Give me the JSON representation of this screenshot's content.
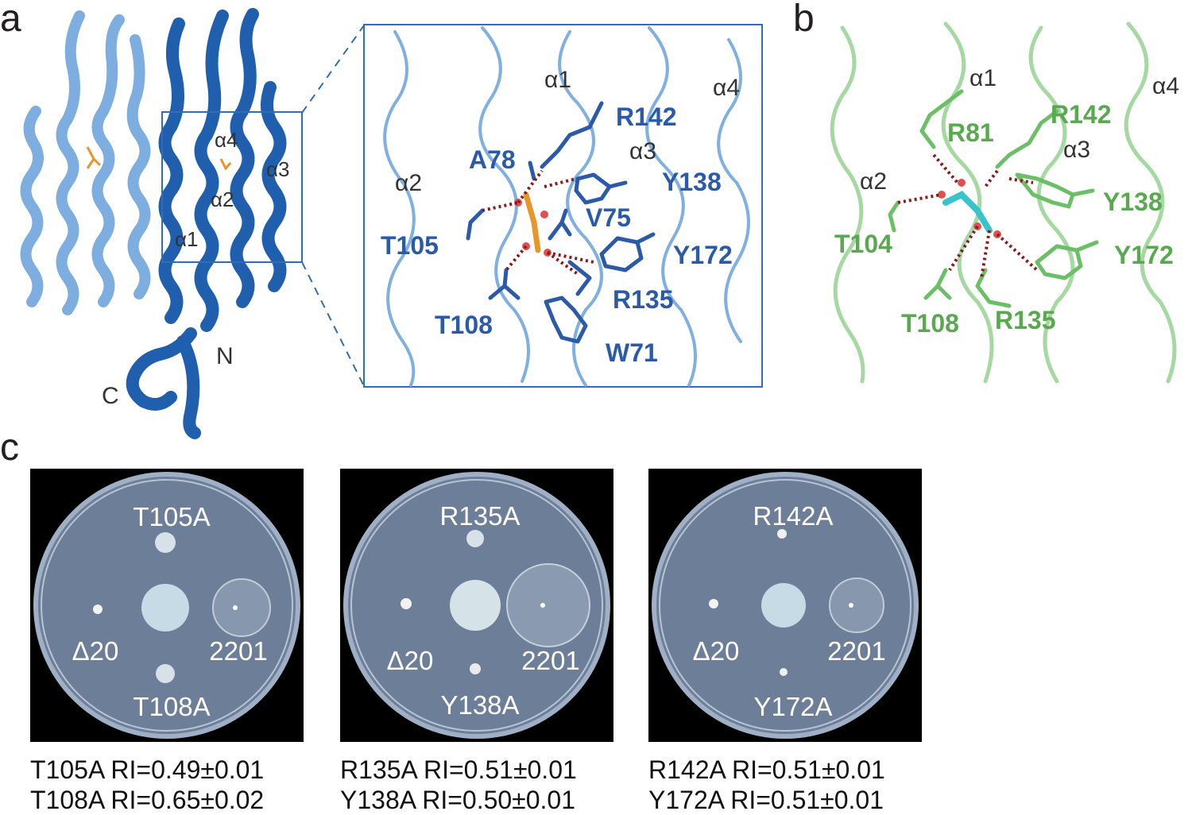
{
  "panels": {
    "a": {
      "letter": "a",
      "overview_labels": {
        "a4": "α4",
        "a3": "α3",
        "a2": "α2",
        "a1": "α1",
        "n_term": "N",
        "c_term": "C"
      },
      "zoom_helix_labels": {
        "a1": "α1",
        "a2": "α2",
        "a3": "α3",
        "a4": "α4"
      },
      "residues": [
        "R142",
        "A78",
        "Y138",
        "V75",
        "T105",
        "Y172",
        "R135",
        "T108",
        "W71"
      ]
    },
    "b": {
      "letter": "b",
      "helix_labels": {
        "a1": "α1",
        "a2": "α2",
        "a3": "α3",
        "a4": "α4"
      },
      "residues": [
        "R81",
        "R142",
        "Y138",
        "T104",
        "Y172",
        "T108",
        "R135"
      ]
    },
    "c": {
      "letter": "c",
      "plates": [
        {
          "top": "T105A",
          "left": "Δ20",
          "right": "2201",
          "bottom": "T108A",
          "captions": [
            "T105A RI=0.49±0.01",
            "T108A RI=0.65±0.02"
          ]
        },
        {
          "top": "R135A",
          "left": "Δ20",
          "right": "2201",
          "bottom": "Y138A",
          "captions": [
            "R135A RI=0.51±0.01",
            "Y138A RI=0.50±0.01"
          ]
        },
        {
          "top": "R142A",
          "left": "Δ20",
          "right": "2201",
          "bottom": "Y172A",
          "captions": [
            "R142A RI=0.51±0.01",
            "Y172A RI=0.51±0.01"
          ]
        }
      ]
    }
  },
  "colors": {
    "light_blue": "#6fa6dc",
    "dark_blue": "#1f5fae",
    "residue_blue": "#2a5aa8",
    "green": "#7cc47a",
    "green_label": "#5aa84f",
    "ligand_orange": "#e8962a",
    "ligand_cyan": "#3cc2cc",
    "hbond": "#8b1a1a",
    "plate_agar": "#6d7f98"
  }
}
